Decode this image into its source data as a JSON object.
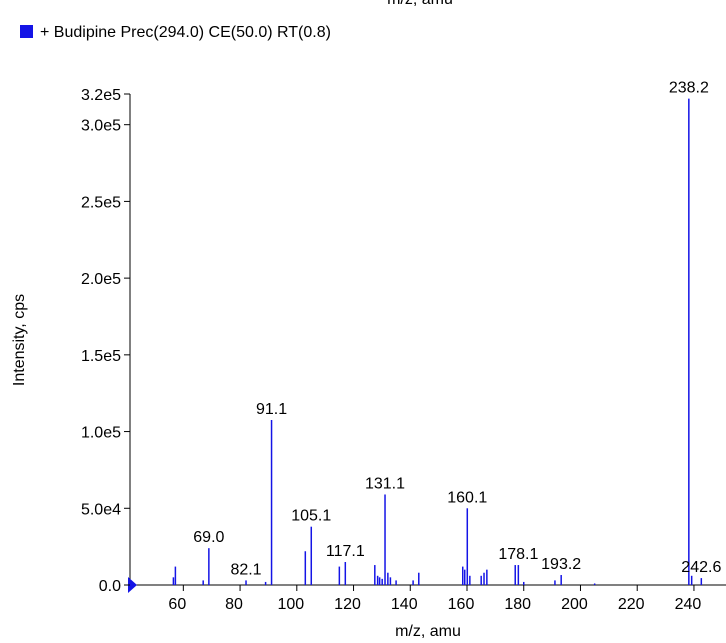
{
  "chart_data": {
    "type": "spectrum",
    "top_label": "m/z, amu",
    "legend": "+ Budipine  Prec(294.0) CE(50.0) RT(0.8)",
    "color": "#1414e6",
    "xlabel": "m/z, amu",
    "ylabel": "Intensity, cps",
    "xlim": [
      41.2,
      251.3
    ],
    "ylim": [
      0,
      320000
    ],
    "xticks": [
      60,
      80,
      100,
      120,
      140,
      160,
      180,
      200,
      220,
      240
    ],
    "yticks": [
      {
        "value": 0,
        "label": "0.0"
      },
      {
        "value": 50000,
        "label": "5.0e4"
      },
      {
        "value": 100000,
        "label": "1.0e5"
      },
      {
        "value": 150000,
        "label": "1.5e5"
      },
      {
        "value": 200000,
        "label": "2.0e5"
      },
      {
        "value": 250000,
        "label": "2.5e5"
      },
      {
        "value": 300000,
        "label": "3.0e5"
      },
      {
        "value": 320000,
        "label": "3.2e5"
      }
    ],
    "x": [
      56.5,
      57.2,
      67,
      69.0,
      82.1,
      89,
      91.1,
      103,
      105.1,
      115,
      117.1,
      127.5,
      128.5,
      129.2,
      130.1,
      131.1,
      132.1,
      133,
      135,
      141,
      143,
      158.5,
      159.2,
      160.1,
      161,
      165,
      166,
      167,
      177,
      178.1,
      180,
      191,
      193.2,
      205,
      238.2,
      239.2,
      242.6
    ],
    "values": [
      5000,
      12000,
      3000,
      24000,
      3000,
      2000,
      107500,
      22000,
      38000,
      12000,
      15000,
      13000,
      6000,
      5000,
      4000,
      59000,
      8000,
      5000,
      3000,
      3000,
      8000,
      12000,
      10000,
      50000,
      6000,
      6000,
      8000,
      10000,
      13000,
      13000,
      2000,
      3000,
      6500,
      1000,
      317000,
      6000,
      4500
    ],
    "x_labels": [
      null,
      null,
      null,
      "69.0",
      "82.1",
      null,
      "91.1",
      null,
      "105.1",
      null,
      "117.1",
      null,
      null,
      null,
      null,
      "131.1",
      null,
      null,
      null,
      null,
      null,
      null,
      null,
      "160.1",
      null,
      null,
      null,
      null,
      null,
      "178.1",
      null,
      null,
      "193.2",
      null,
      "238.2",
      null,
      "242.6"
    ]
  }
}
